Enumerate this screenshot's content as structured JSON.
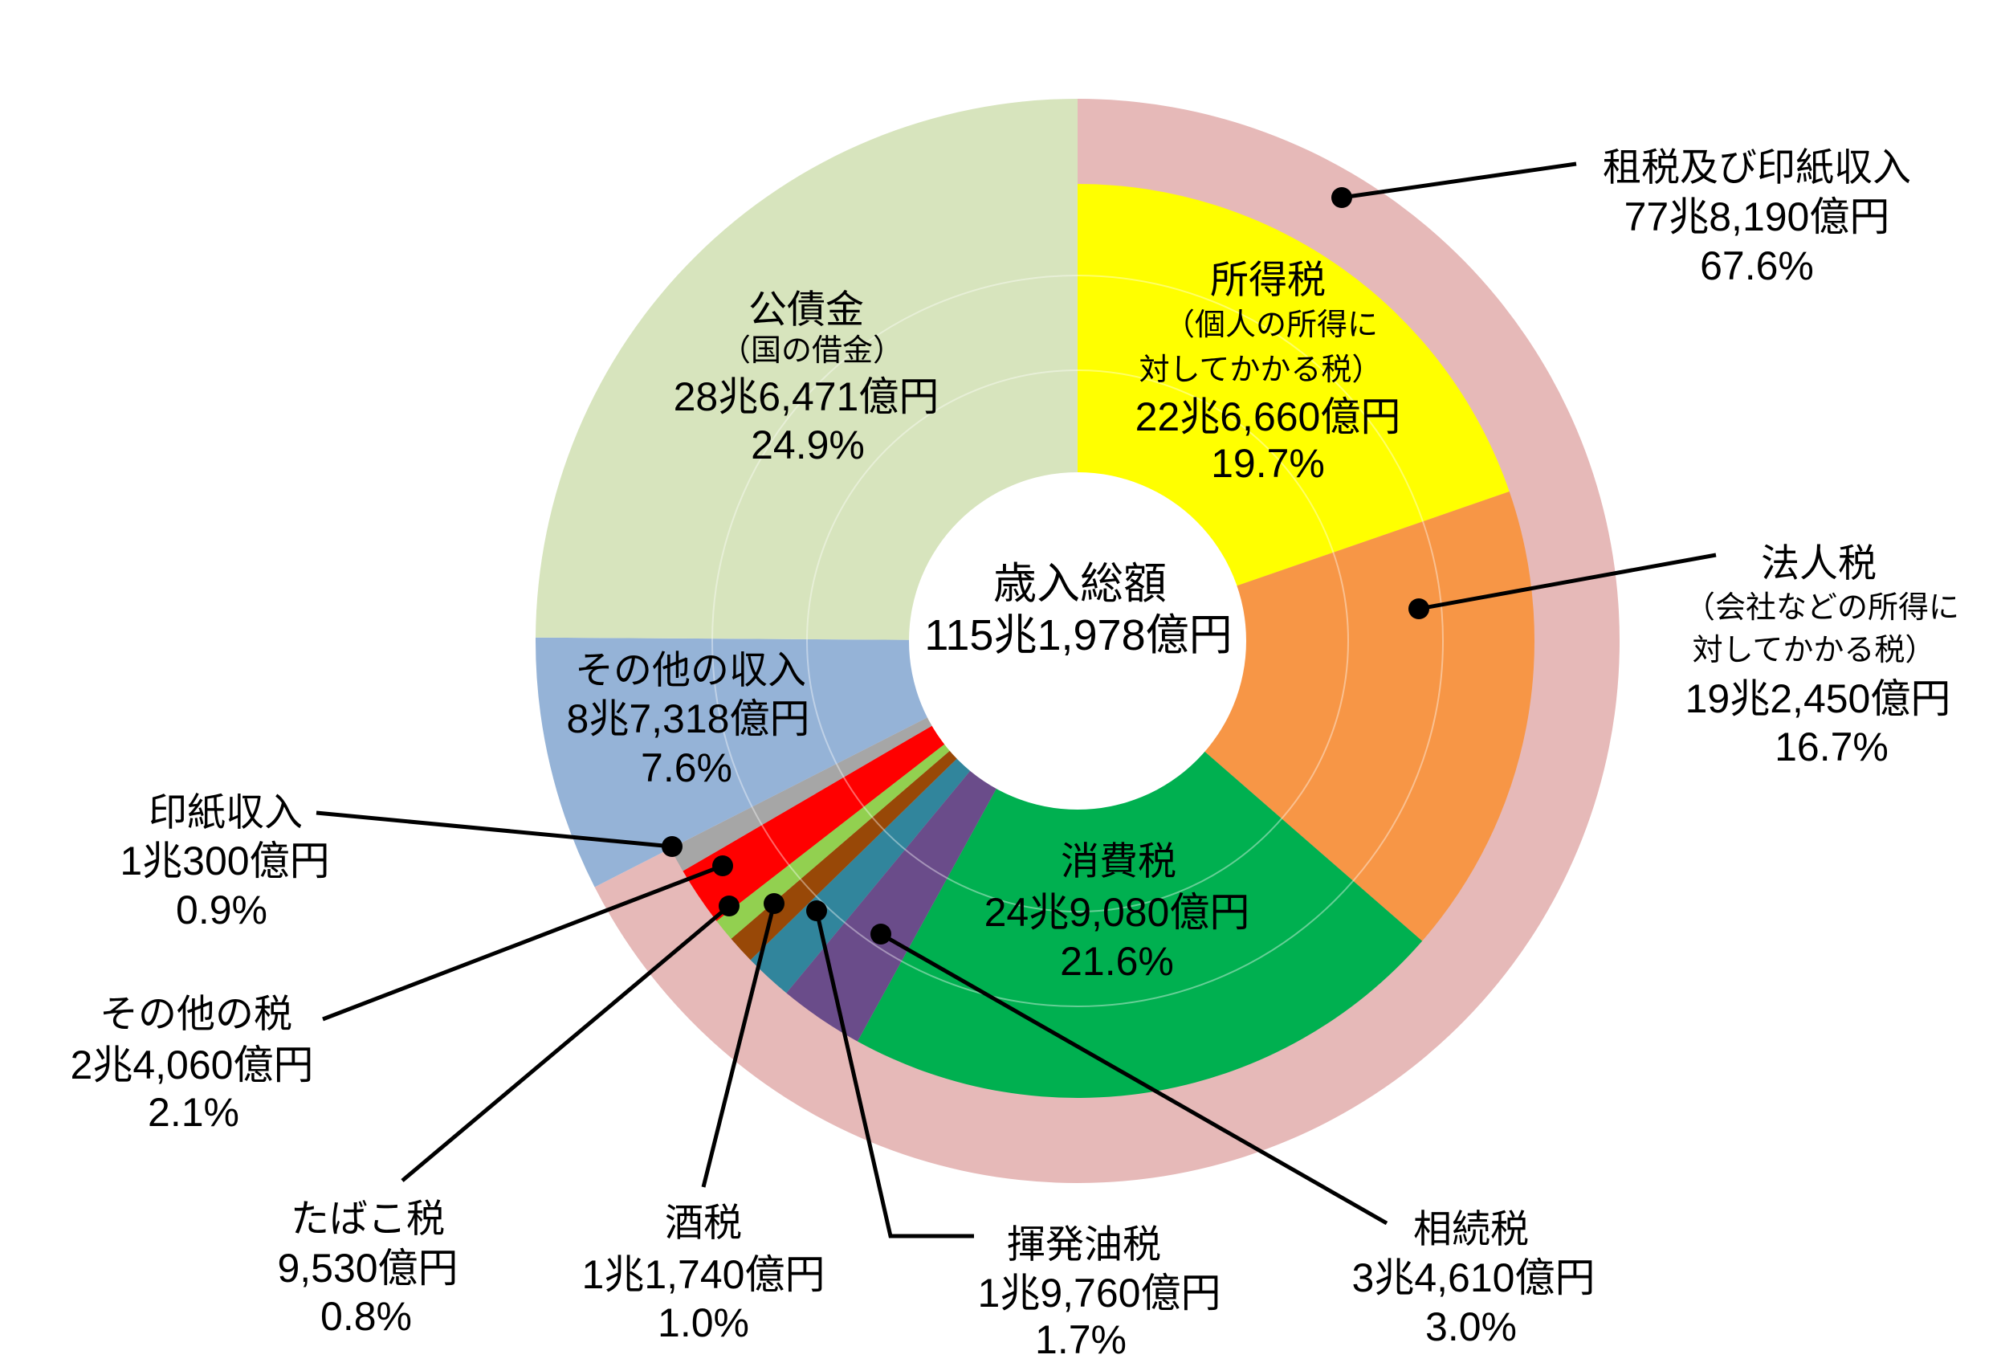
{
  "chart_data": {
    "type": "pie",
    "center_label": "歳入総額",
    "total": "115兆1,978億円",
    "ring": {
      "name": "租税及び印紙収入",
      "amount": "77兆8,190億円",
      "percent": 67.6,
      "percent_label": "67.6%",
      "color": "#E6B9B8",
      "slices": [
        {
          "name": "所得税",
          "note": [
            "（個人の所得に",
            "対してかかる税）"
          ],
          "amount": "22兆6,660億円",
          "percent": 19.7,
          "percent_label": "19.7%",
          "color": "#FFFF00"
        },
        {
          "name": "法人税",
          "note": [
            "（会社などの所得に",
            "対してかかる税）"
          ],
          "amount": "19兆2,450億円",
          "percent": 16.7,
          "percent_label": "16.7%",
          "color": "#F79646"
        },
        {
          "name": "消費税",
          "amount": "24兆9,080億円",
          "percent": 21.6,
          "percent_label": "21.6%",
          "color": "#00B050"
        },
        {
          "name": "相続税",
          "amount": "3兆4,610億円",
          "percent": 3.0,
          "percent_label": "3.0%",
          "color": "#6A4C8A"
        },
        {
          "name": "揮発油税",
          "amount": "1兆9,760億円",
          "percent": 1.7,
          "percent_label": "1.7%",
          "color": "#31859C"
        },
        {
          "name": "酒税",
          "amount": "1兆1,740億円",
          "percent": 1.0,
          "percent_label": "1.0%",
          "color": "#984807"
        },
        {
          "name": "たばこ税",
          "amount": "9,530億円",
          "percent": 0.8,
          "percent_label": "0.8%",
          "color": "#92D050"
        },
        {
          "name": "その他の税",
          "amount": "2兆4,060億円",
          "percent": 2.1,
          "percent_label": "2.1%",
          "color": "#FF0000"
        },
        {
          "name": "印紙収入",
          "amount": "1兆300億円",
          "percent": 0.9,
          "percent_label": "0.9%",
          "color": "#A6A6A6"
        }
      ]
    },
    "slices": [
      {
        "name": "その他の収入",
        "amount": "8兆7,318億円",
        "percent": 7.6,
        "percent_label": "7.6%",
        "color": "#95B3D7"
      },
      {
        "name": "公債金",
        "note": [
          "（国の借金）"
        ],
        "amount": "28兆6,471億円",
        "percent": 24.9,
        "percent_label": "24.9%",
        "color": "#D7E4BD"
      }
    ]
  }
}
